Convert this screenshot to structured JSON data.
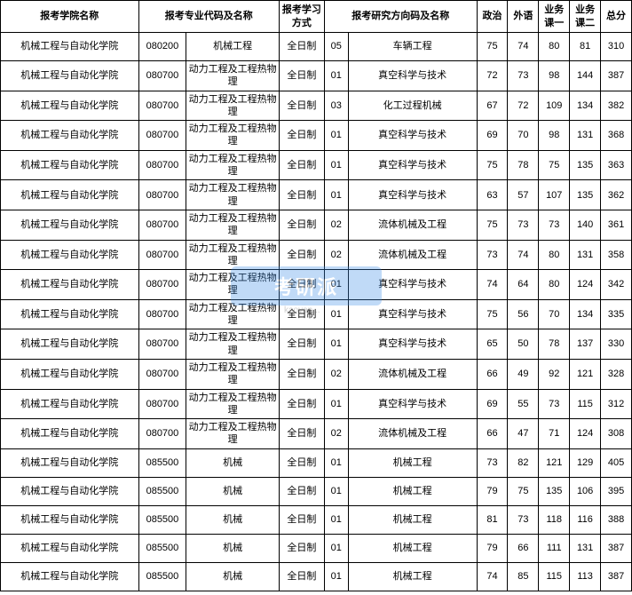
{
  "headers": {
    "school": "报考学院名称",
    "major": "报考专业代码及名称",
    "study": "报考学习方式",
    "direction": "报考研究方向码及名称",
    "politics": "政治",
    "foreign": "外语",
    "course1": "业务课一",
    "course2": "业务课二",
    "total": "总分"
  },
  "watermark_text": "考研派",
  "watermark_url": "kaoyan...",
  "rows": [
    {
      "school": "机械工程与自动化学院",
      "code": "080200",
      "major": "机械工程",
      "study": "全日制",
      "dircode": "05",
      "dirname": "车辆工程",
      "s1": 75,
      "s2": 74,
      "s3": 80,
      "s4": 81,
      "total": 310
    },
    {
      "school": "机械工程与自动化学院",
      "code": "080700",
      "major": "动力工程及工程热物理",
      "study": "全日制",
      "dircode": "01",
      "dirname": "真空科学与技术",
      "s1": 72,
      "s2": 73,
      "s3": 98,
      "s4": 144,
      "total": 387
    },
    {
      "school": "机械工程与自动化学院",
      "code": "080700",
      "major": "动力工程及工程热物理",
      "study": "全日制",
      "dircode": "03",
      "dirname": "化工过程机械",
      "s1": 67,
      "s2": 72,
      "s3": 109,
      "s4": 134,
      "total": 382
    },
    {
      "school": "机械工程与自动化学院",
      "code": "080700",
      "major": "动力工程及工程热物理",
      "study": "全日制",
      "dircode": "01",
      "dirname": "真空科学与技术",
      "s1": 69,
      "s2": 70,
      "s3": 98,
      "s4": 131,
      "total": 368
    },
    {
      "school": "机械工程与自动化学院",
      "code": "080700",
      "major": "动力工程及工程热物理",
      "study": "全日制",
      "dircode": "01",
      "dirname": "真空科学与技术",
      "s1": 75,
      "s2": 78,
      "s3": 75,
      "s4": 135,
      "total": 363
    },
    {
      "school": "机械工程与自动化学院",
      "code": "080700",
      "major": "动力工程及工程热物理",
      "study": "全日制",
      "dircode": "01",
      "dirname": "真空科学与技术",
      "s1": 63,
      "s2": 57,
      "s3": 107,
      "s4": 135,
      "total": 362
    },
    {
      "school": "机械工程与自动化学院",
      "code": "080700",
      "major": "动力工程及工程热物理",
      "study": "全日制",
      "dircode": "02",
      "dirname": "流体机械及工程",
      "s1": 75,
      "s2": 73,
      "s3": 73,
      "s4": 140,
      "total": 361
    },
    {
      "school": "机械工程与自动化学院",
      "code": "080700",
      "major": "动力工程及工程热物理",
      "study": "全日制",
      "dircode": "02",
      "dirname": "流体机械及工程",
      "s1": 73,
      "s2": 74,
      "s3": 80,
      "s4": 131,
      "total": 358
    },
    {
      "school": "机械工程与自动化学院",
      "code": "080700",
      "major": "动力工程及工程热物理",
      "study": "全日制",
      "dircode": "01",
      "dirname": "真空科学与技术",
      "s1": 74,
      "s2": 64,
      "s3": 80,
      "s4": 124,
      "total": 342
    },
    {
      "school": "机械工程与自动化学院",
      "code": "080700",
      "major": "动力工程及工程热物理",
      "study": "全日制",
      "dircode": "01",
      "dirname": "真空科学与技术",
      "s1": 75,
      "s2": 56,
      "s3": 70,
      "s4": 134,
      "total": 335
    },
    {
      "school": "机械工程与自动化学院",
      "code": "080700",
      "major": "动力工程及工程热物理",
      "study": "全日制",
      "dircode": "01",
      "dirname": "真空科学与技术",
      "s1": 65,
      "s2": 50,
      "s3": 78,
      "s4": 137,
      "total": 330
    },
    {
      "school": "机械工程与自动化学院",
      "code": "080700",
      "major": "动力工程及工程热物理",
      "study": "全日制",
      "dircode": "02",
      "dirname": "流体机械及工程",
      "s1": 66,
      "s2": 49,
      "s3": 92,
      "s4": 121,
      "total": 328
    },
    {
      "school": "机械工程与自动化学院",
      "code": "080700",
      "major": "动力工程及工程热物理",
      "study": "全日制",
      "dircode": "01",
      "dirname": "真空科学与技术",
      "s1": 69,
      "s2": 55,
      "s3": 73,
      "s4": 115,
      "total": 312
    },
    {
      "school": "机械工程与自动化学院",
      "code": "080700",
      "major": "动力工程及工程热物理",
      "study": "全日制",
      "dircode": "02",
      "dirname": "流体机械及工程",
      "s1": 66,
      "s2": 47,
      "s3": 71,
      "s4": 124,
      "total": 308
    },
    {
      "school": "机械工程与自动化学院",
      "code": "085500",
      "major": "机械",
      "study": "全日制",
      "dircode": "01",
      "dirname": "机械工程",
      "s1": 73,
      "s2": 82,
      "s3": 121,
      "s4": 129,
      "total": 405
    },
    {
      "school": "机械工程与自动化学院",
      "code": "085500",
      "major": "机械",
      "study": "全日制",
      "dircode": "01",
      "dirname": "机械工程",
      "s1": 79,
      "s2": 75,
      "s3": 135,
      "s4": 106,
      "total": 395
    },
    {
      "school": "机械工程与自动化学院",
      "code": "085500",
      "major": "机械",
      "study": "全日制",
      "dircode": "01",
      "dirname": "机械工程",
      "s1": 81,
      "s2": 73,
      "s3": 118,
      "s4": 116,
      "total": 388
    },
    {
      "school": "机械工程与自动化学院",
      "code": "085500",
      "major": "机械",
      "study": "全日制",
      "dircode": "01",
      "dirname": "机械工程",
      "s1": 79,
      "s2": 66,
      "s3": 111,
      "s4": 131,
      "total": 387
    },
    {
      "school": "机械工程与自动化学院",
      "code": "085500",
      "major": "机械",
      "study": "全日制",
      "dircode": "01",
      "dirname": "机械工程",
      "s1": 74,
      "s2": 85,
      "s3": 115,
      "s4": 113,
      "total": 387
    }
  ]
}
